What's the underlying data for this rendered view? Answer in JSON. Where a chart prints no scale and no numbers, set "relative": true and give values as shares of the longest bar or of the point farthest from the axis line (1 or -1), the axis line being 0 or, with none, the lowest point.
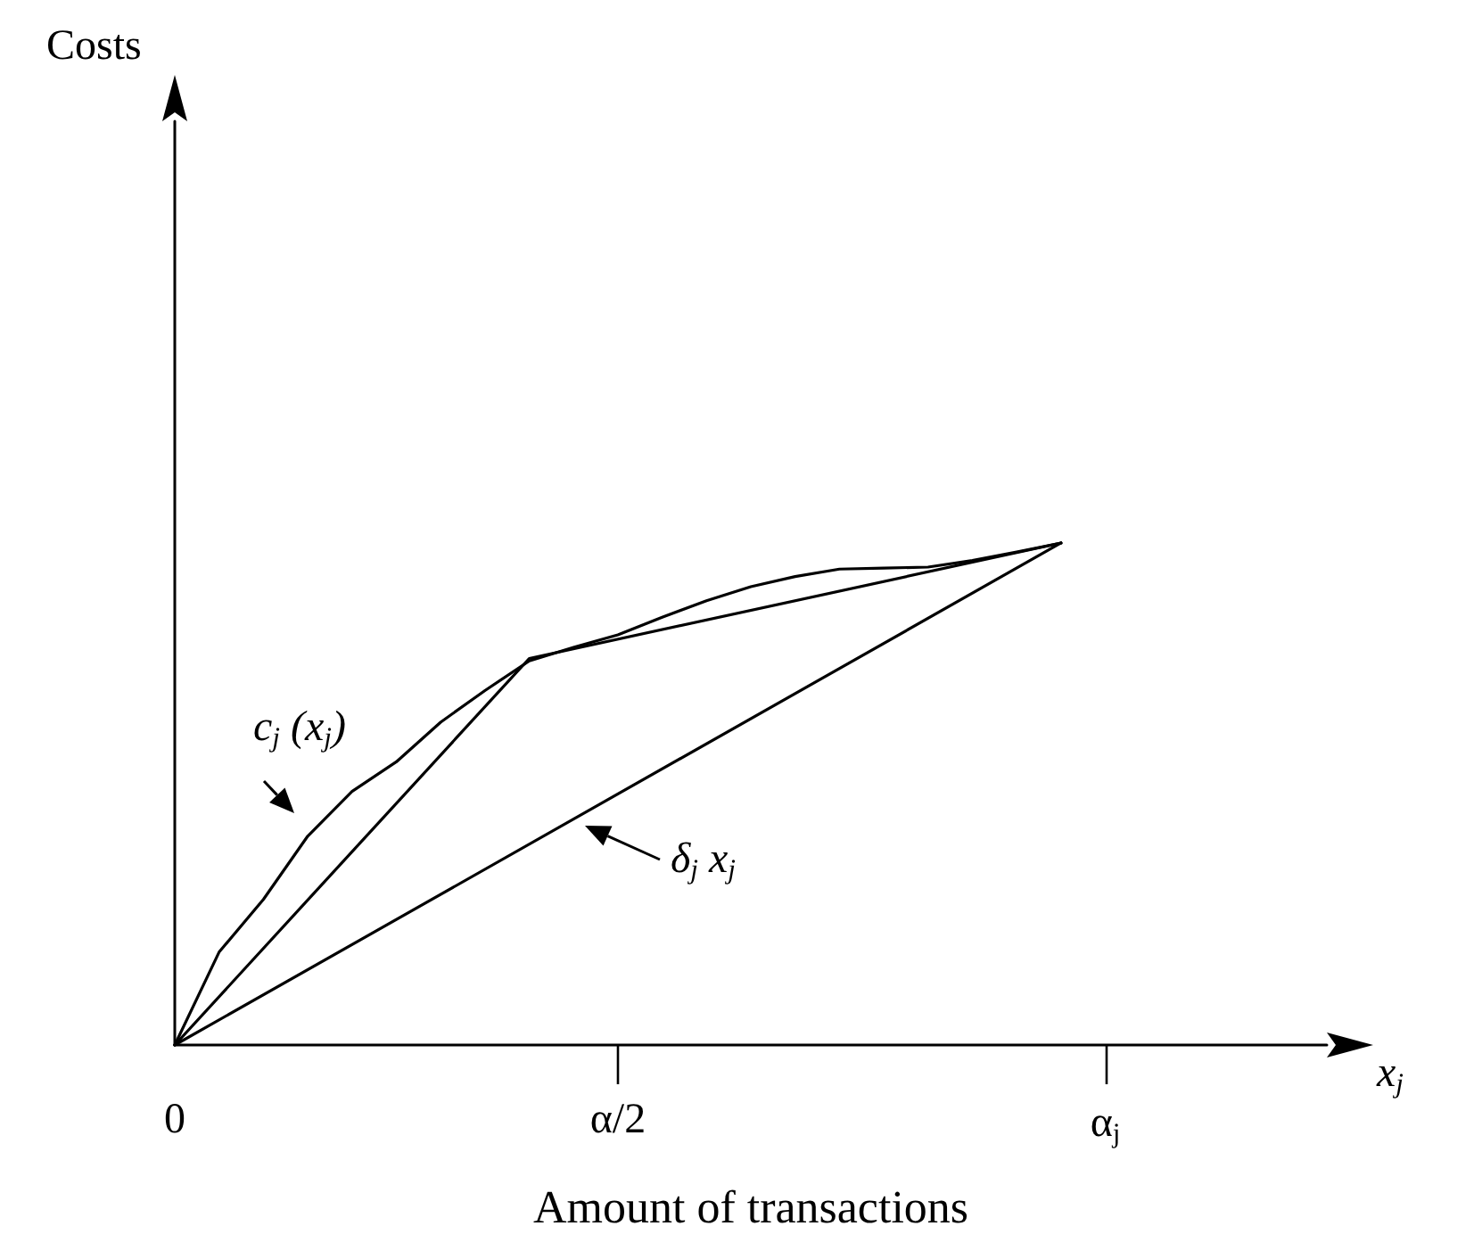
{
  "chart_data": {
    "type": "line",
    "relative": true,
    "xlabel": "Amount of transactions",
    "marker": "none",
    "line_style": "solid",
    "grid": false,
    "categories": [
      "0",
      null,
      null,
      null,
      null,
      null,
      null,
      null,
      null,
      null,
      "α/2",
      null,
      null,
      null,
      null,
      null,
      null,
      null,
      null,
      null,
      null,
      "α$_{j}$",
      null,
      null,
      null,
      null,
      null
    ],
    "annotations": [
      "c$_{j}$ (x$_{j}$)",
      "δ$_{j}$ x$_{j}$",
      "x$_{j}$",
      "Costs"
    ],
    "series": [
      {
        "color": "#000000",
        "values": [
          0,
          0.185,
          0.29,
          0.416,
          0.505,
          0.564,
          0.643,
          0.706,
          0.765,
          0.792,
          0.817,
          0.852,
          0.885,
          0.913,
          0.933,
          0.948,
          0.95,
          0.952,
          0.965,
          0.982,
          1,
          null,
          null,
          null,
          null,
          null,
          null
        ]
      },
      {
        "color": "#000000",
        "values": [
          0,
          null,
          null,
          null,
          null,
          null,
          null,
          null,
          0.77,
          null,
          null,
          null,
          null,
          null,
          null,
          null,
          null,
          null,
          null,
          null,
          1,
          null,
          null,
          null,
          null,
          null,
          null
        ]
      },
      {
        "color": "#000000",
        "values": [
          0,
          null,
          null,
          null,
          null,
          null,
          null,
          null,
          null,
          null,
          null,
          null,
          null,
          null,
          null,
          null,
          null,
          null,
          null,
          null,
          1,
          null,
          null,
          null,
          null,
          null,
          null
        ]
      }
    ]
  }
}
